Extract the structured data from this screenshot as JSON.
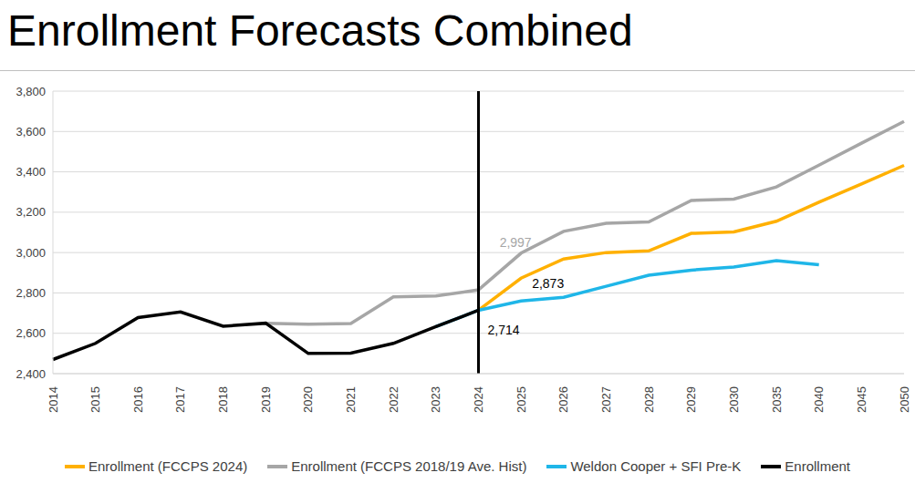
{
  "chart_data": {
    "type": "line",
    "title": "Enrollment Forecasts Combined",
    "categories": [
      "2014",
      "2015",
      "2016",
      "2017",
      "2018",
      "2019",
      "2020",
      "2021",
      "2022",
      "2023",
      "2024",
      "2025",
      "2026",
      "2027",
      "2028",
      "2029",
      "2030",
      "2035",
      "2040",
      "2045",
      "2050"
    ],
    "series": [
      {
        "name": "Enrollment (FCCPS 2024)",
        "color": "#ffb000",
        "values": [
          null,
          null,
          null,
          null,
          null,
          null,
          null,
          null,
          null,
          null,
          2714,
          2873,
          2968,
          3000,
          3008,
          3095,
          3102,
          3155,
          3250,
          3340,
          3432
        ]
      },
      {
        "name": "Enrollment (FCCPS 2018/19 Ave. Hist)",
        "color": "#a6a6a6",
        "values": [
          null,
          null,
          null,
          null,
          null,
          2650,
          2645,
          2648,
          2780,
          2785,
          2815,
          2997,
          3105,
          3145,
          3152,
          3258,
          3265,
          3325,
          3433,
          3542,
          3650
        ]
      },
      {
        "name": "Weldon Cooper + SFI Pre-K",
        "color": "#1fb6e8",
        "values": [
          null,
          null,
          null,
          null,
          null,
          null,
          null,
          null,
          null,
          2633,
          2714,
          2760,
          2778,
          2833,
          2888,
          2913,
          2928,
          2960,
          2940,
          null,
          null
        ]
      },
      {
        "name": "Enrollment",
        "color": "#000000",
        "values": [
          2470,
          2550,
          2678,
          2706,
          2635,
          2650,
          2500,
          2502,
          2550,
          2633,
          2714,
          null,
          null,
          null,
          null,
          null,
          null,
          null,
          null,
          null,
          null
        ]
      }
    ],
    "ylim": [
      2400,
      3800
    ],
    "yticks": [
      {
        "value": 2400,
        "label": "2,400"
      },
      {
        "value": 2600,
        "label": "2,600"
      },
      {
        "value": 2800,
        "label": "2,800"
      },
      {
        "value": 3000,
        "label": "3,000"
      },
      {
        "value": 3200,
        "label": "3,200"
      },
      {
        "value": 3400,
        "label": "3,400"
      },
      {
        "value": 3600,
        "label": "3,600"
      },
      {
        "value": 3800,
        "label": "3,800"
      }
    ],
    "grid": true,
    "legend": "bottom",
    "reference_line_x": "2024",
    "annotations": [
      {
        "x": "2025",
        "y": 2997,
        "text": "2,997",
        "color": "#a6a6a6"
      },
      {
        "x": "2025",
        "y": 2873,
        "text": "2,873",
        "color": "#000000"
      },
      {
        "x": "2024",
        "y": 2714,
        "text": "2,714",
        "color": "#000000"
      }
    ]
  }
}
